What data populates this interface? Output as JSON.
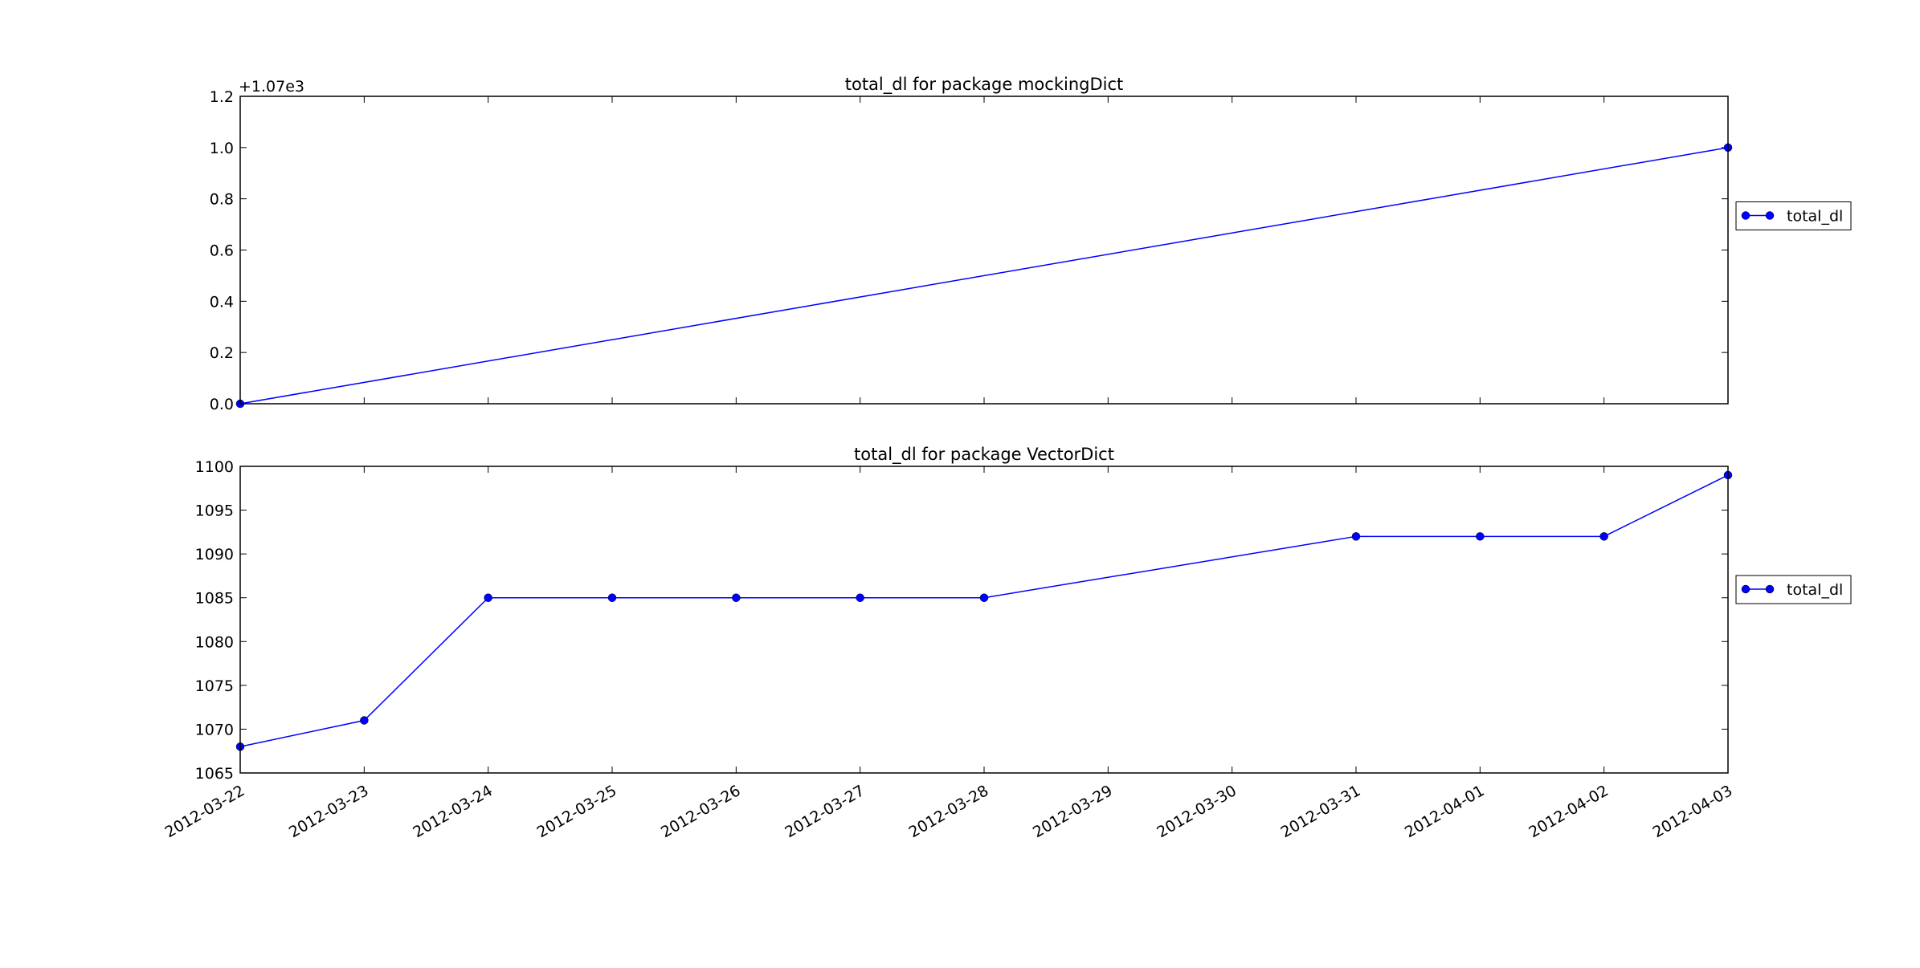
{
  "chart_data": [
    {
      "type": "line",
      "title": "total_dl for package mockingDict",
      "offset_label": "+1.07e3",
      "x": [
        "2012-03-22",
        "2012-04-03"
      ],
      "series": [
        {
          "name": "total_dl",
          "color": "#0000ff",
          "values": [
            0.0,
            1.0
          ]
        }
      ],
      "xlim": [
        "2012-03-22",
        "2012-04-03"
      ],
      "ylim": [
        0,
        1.2
      ],
      "yticks": [
        {
          "value": 0,
          "label": "0.0"
        },
        {
          "value": 0.2,
          "label": "0.2"
        },
        {
          "value": 0.4,
          "label": "0.4"
        },
        {
          "value": 0.6,
          "label": "0.6"
        },
        {
          "value": 0.8,
          "label": "0.8"
        },
        {
          "value": 1,
          "label": "1.0"
        },
        {
          "value": 1.2,
          "label": "1.2"
        }
      ],
      "legend": "right"
    },
    {
      "type": "line",
      "title": "total_dl for package VectorDict",
      "x": [
        "2012-03-22",
        "2012-03-23",
        "2012-03-24",
        "2012-03-25",
        "2012-03-26",
        "2012-03-27",
        "2012-03-28",
        "2012-03-31",
        "2012-04-01",
        "2012-04-02",
        "2012-04-03"
      ],
      "series": [
        {
          "name": "total_dl",
          "color": "#0000ff",
          "values": [
            1068,
            1071,
            1085,
            1085,
            1085,
            1085,
            1085,
            1092,
            1092,
            1092,
            1099
          ]
        }
      ],
      "xlim": [
        "2012-03-22",
        "2012-04-03"
      ],
      "xticks": [
        "2012-03-22",
        "2012-03-23",
        "2012-03-24",
        "2012-03-25",
        "2012-03-26",
        "2012-03-27",
        "2012-03-28",
        "2012-03-29",
        "2012-03-30",
        "2012-03-31",
        "2012-04-01",
        "2012-04-02",
        "2012-04-03"
      ],
      "ylim": [
        1065,
        1100
      ],
      "yticks": [
        1065,
        1070,
        1075,
        1080,
        1085,
        1090,
        1095,
        1100
      ],
      "legend": "right"
    }
  ]
}
